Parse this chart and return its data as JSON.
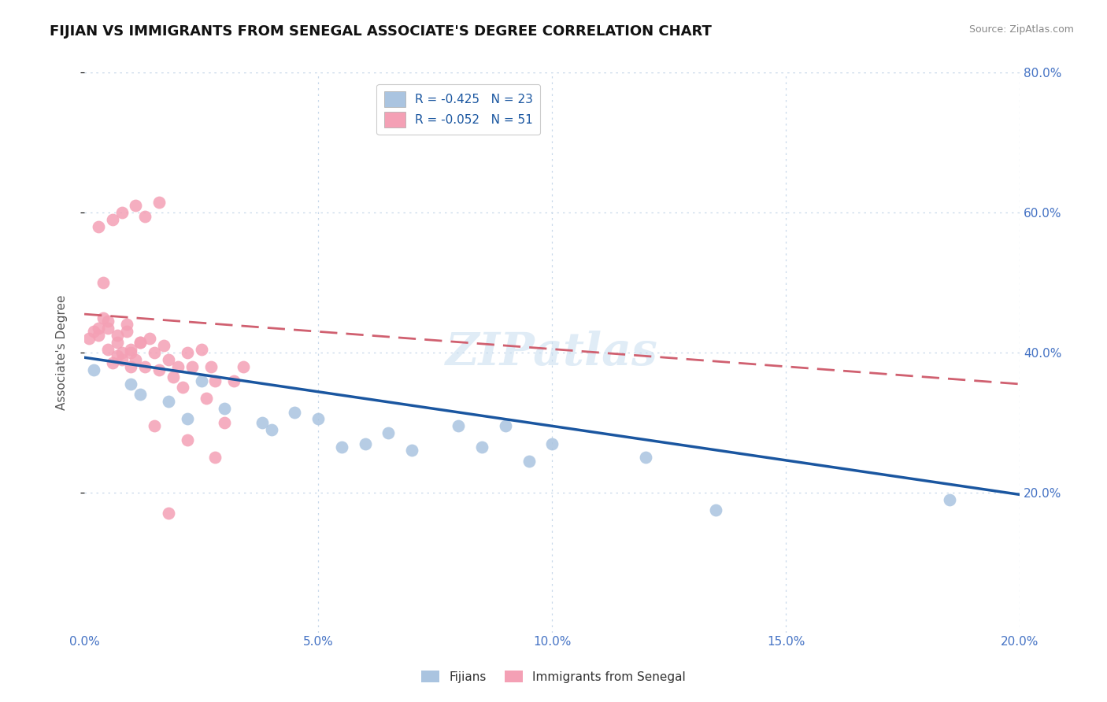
{
  "title": "FIJIAN VS IMMIGRANTS FROM SENEGAL ASSOCIATE'S DEGREE CORRELATION CHART",
  "source": "Source: ZipAtlas.com",
  "ylabel": "Associate's Degree",
  "legend_label1": "R = -0.425   N = 23",
  "legend_label2": "R = -0.052   N = 51",
  "legend_sublabel1": "Fijians",
  "legend_sublabel2": "Immigrants from Senegal",
  "xlim": [
    0.0,
    0.2
  ],
  "ylim": [
    0.0,
    0.8
  ],
  "yticks": [
    0.2,
    0.4,
    0.6,
    0.8
  ],
  "xticks": [
    0.0,
    0.05,
    0.1,
    0.15,
    0.2
  ],
  "fijian_color": "#aac4e0",
  "senegal_color": "#f4a0b5",
  "trend_fijian_color": "#1a56a0",
  "trend_senegal_color": "#d06070",
  "background": "#ffffff",
  "grid_color": "#c8d8ea",
  "fijian_x": [
    0.002,
    0.01,
    0.012,
    0.018,
    0.022,
    0.025,
    0.03,
    0.038,
    0.04,
    0.045,
    0.05,
    0.055,
    0.06,
    0.065,
    0.07,
    0.08,
    0.085,
    0.09,
    0.095,
    0.1,
    0.12,
    0.135,
    0.185
  ],
  "fijian_y": [
    0.375,
    0.355,
    0.34,
    0.33,
    0.305,
    0.36,
    0.32,
    0.3,
    0.29,
    0.315,
    0.305,
    0.265,
    0.27,
    0.285,
    0.26,
    0.295,
    0.265,
    0.295,
    0.245,
    0.27,
    0.25,
    0.175,
    0.19
  ],
  "senegal_x": [
    0.001,
    0.002,
    0.003,
    0.003,
    0.004,
    0.005,
    0.005,
    0.006,
    0.007,
    0.007,
    0.008,
    0.008,
    0.009,
    0.01,
    0.01,
    0.011,
    0.011,
    0.012,
    0.013,
    0.013,
    0.014,
    0.015,
    0.016,
    0.016,
    0.017,
    0.018,
    0.019,
    0.02,
    0.021,
    0.022,
    0.023,
    0.025,
    0.026,
    0.027,
    0.028,
    0.03,
    0.032,
    0.034,
    0.01,
    0.012,
    0.005,
    0.007,
    0.009,
    0.003,
    0.015,
    0.018,
    0.022,
    0.028,
    0.008,
    0.006,
    0.004
  ],
  "senegal_y": [
    0.42,
    0.43,
    0.425,
    0.58,
    0.45,
    0.405,
    0.445,
    0.385,
    0.415,
    0.425,
    0.4,
    0.39,
    0.43,
    0.38,
    0.4,
    0.39,
    0.61,
    0.415,
    0.38,
    0.595,
    0.42,
    0.4,
    0.375,
    0.615,
    0.41,
    0.39,
    0.365,
    0.38,
    0.35,
    0.4,
    0.38,
    0.405,
    0.335,
    0.38,
    0.36,
    0.3,
    0.36,
    0.38,
    0.405,
    0.415,
    0.435,
    0.395,
    0.44,
    0.435,
    0.295,
    0.17,
    0.275,
    0.25,
    0.6,
    0.59,
    0.5
  ],
  "watermark": "ZIPatlas",
  "trend_fijian_x0": 0.0,
  "trend_fijian_y0": 0.393,
  "trend_fijian_x1": 0.2,
  "trend_fijian_y1": 0.197,
  "trend_senegal_x0": 0.0,
  "trend_senegal_y0": 0.455,
  "trend_senegal_x1": 0.2,
  "trend_senegal_y1": 0.355
}
